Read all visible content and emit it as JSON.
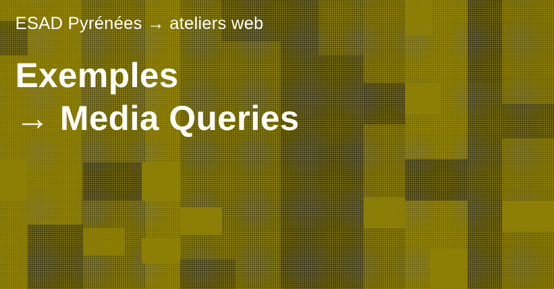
{
  "header": {
    "subtitle": "ESAD Pyrénées → ateliers web"
  },
  "title": {
    "line1": "Exemples",
    "line2": "→ Media Queries"
  },
  "colors": {
    "background": "#8d7f06",
    "halftone_dark": "#2b2a20",
    "text": "#ffffff"
  }
}
